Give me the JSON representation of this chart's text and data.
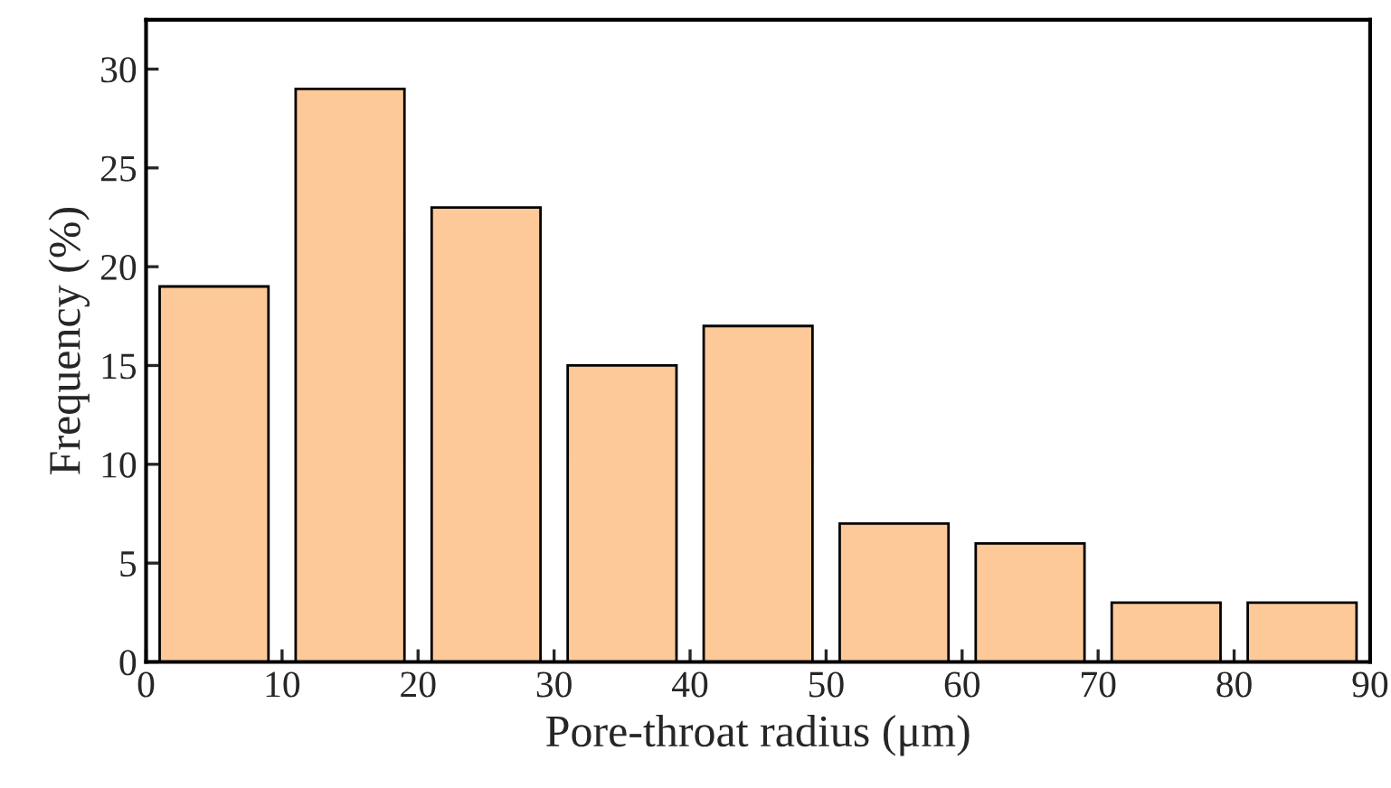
{
  "chart_data": {
    "type": "histogram",
    "xlabel": "Pore-throat radius (μm)",
    "ylabel": "Frequency (%)",
    "bins": [
      0,
      10,
      20,
      30,
      40,
      50,
      60,
      70,
      80,
      90
    ],
    "values": [
      19,
      29,
      23,
      15,
      17,
      7,
      6,
      3,
      3
    ],
    "color": "#fdc998",
    "xlim": [
      0,
      90
    ],
    "xticks": [
      0,
      10,
      20,
      30,
      40,
      50,
      60,
      70,
      80,
      90
    ],
    "ylim": [
      0,
      32.5
    ],
    "yticks": [
      0,
      5,
      10,
      15,
      20,
      25,
      30
    ],
    "grid": false,
    "legend": false
  }
}
